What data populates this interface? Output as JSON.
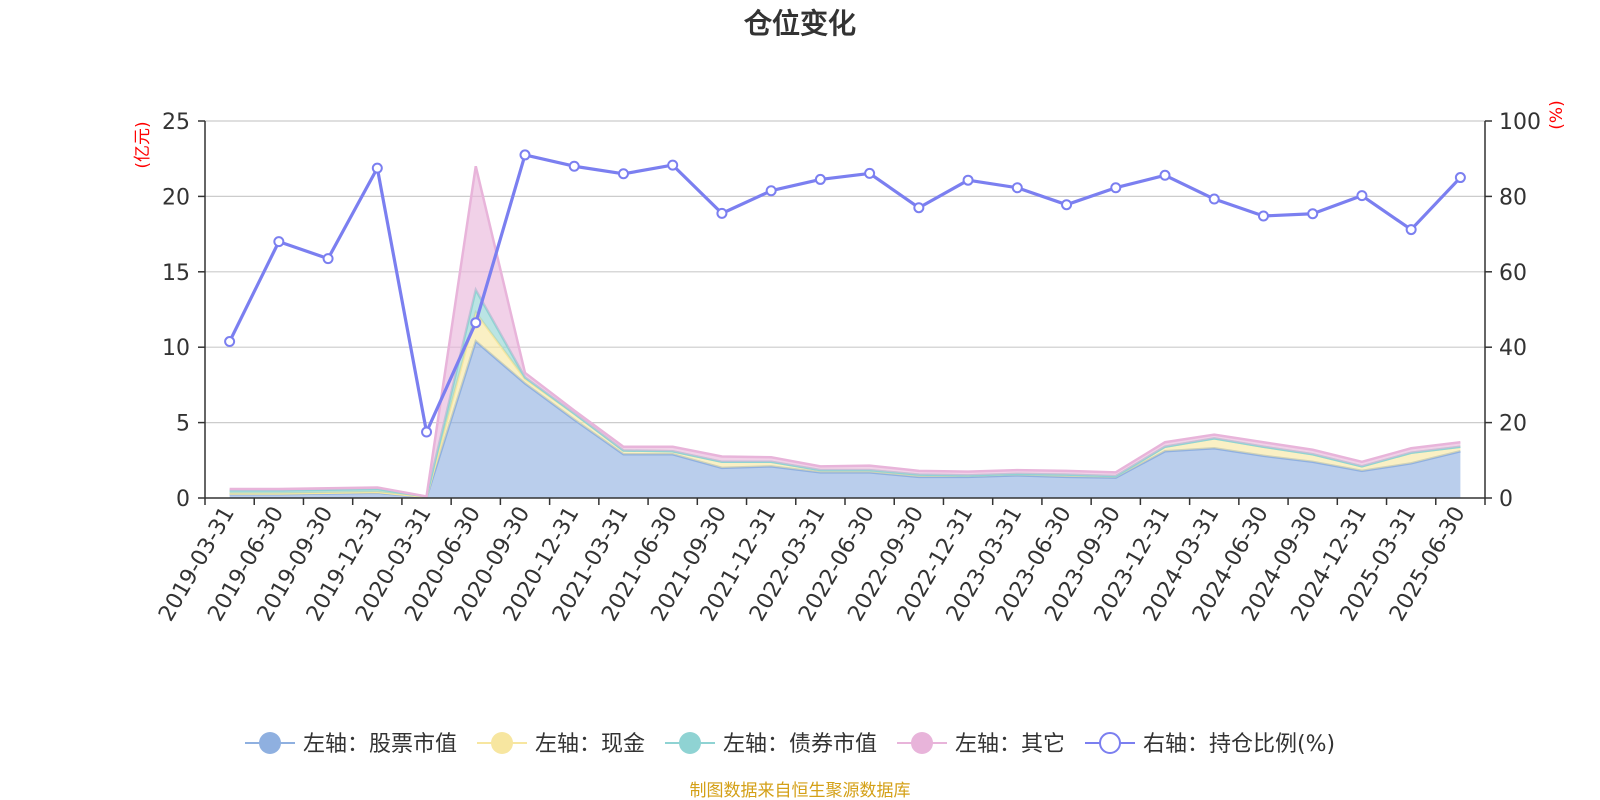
{
  "chart_data": {
    "type": "area",
    "title": "仓位变化",
    "left_axis_unit": "(亿元)",
    "right_axis_unit": "(%)",
    "ylim_left": [
      0,
      25
    ],
    "ylim_right": [
      0,
      100
    ],
    "yticks_left": [
      "0",
      "5",
      "10",
      "15",
      "20",
      "25"
    ],
    "yticks_right": [
      "0",
      "20",
      "40",
      "60",
      "80",
      "100"
    ],
    "grid": true,
    "legend_position": "bottom",
    "categories": [
      "2019-03-31",
      "2019-06-30",
      "2019-09-30",
      "2019-12-31",
      "2020-03-31",
      "2020-06-30",
      "2020-09-30",
      "2020-12-31",
      "2021-03-31",
      "2021-06-30",
      "2021-09-30",
      "2021-12-31",
      "2022-03-31",
      "2022-06-30",
      "2022-09-30",
      "2022-12-31",
      "2023-03-31",
      "2023-06-30",
      "2023-09-30",
      "2023-12-31",
      "2024-03-31",
      "2024-06-30",
      "2024-09-30",
      "2024-12-31",
      "2025-03-31",
      "2025-06-30"
    ],
    "series": [
      {
        "name": "左轴：股票市值",
        "axis": "left",
        "stacked": true,
        "color": "#8fb0e0",
        "values": [
          0.25,
          0.25,
          0.3,
          0.35,
          0.05,
          10.4,
          7.6,
          5.2,
          2.9,
          2.9,
          2.0,
          2.1,
          1.7,
          1.7,
          1.4,
          1.4,
          1.5,
          1.4,
          1.35,
          3.1,
          3.3,
          2.8,
          2.4,
          1.8,
          2.3,
          3.1
        ]
      },
      {
        "name": "左轴：现金",
        "axis": "left",
        "stacked": true,
        "color": "#f7e6a0",
        "values": [
          0.05,
          0.05,
          0.05,
          0.05,
          0.02,
          1.9,
          0.3,
          0.4,
          0.25,
          0.2,
          0.4,
          0.3,
          0.15,
          0.15,
          0.15,
          0.1,
          0.1,
          0.15,
          0.1,
          0.3,
          0.65,
          0.6,
          0.5,
          0.3,
          0.7,
          0.3
        ]
      },
      {
        "name": "左轴：债券市值",
        "axis": "left",
        "stacked": true,
        "color": "#8fd3d3",
        "values": [
          0.2,
          0.2,
          0.2,
          0.2,
          0.02,
          1.5,
          0.1,
          0,
          0,
          0,
          0,
          0,
          0,
          0,
          0,
          0,
          0,
          0,
          0,
          0,
          0,
          0,
          0,
          0,
          0,
          0
        ]
      },
      {
        "name": "左轴：其它",
        "axis": "left",
        "stacked": true,
        "color": "#e8b4da",
        "values": [
          0.1,
          0.1,
          0.1,
          0.1,
          0.01,
          8.2,
          0.3,
          0.2,
          0.25,
          0.3,
          0.35,
          0.3,
          0.25,
          0.3,
          0.25,
          0.25,
          0.25,
          0.25,
          0.25,
          0.3,
          0.25,
          0.3,
          0.3,
          0.3,
          0.3,
          0.3
        ]
      },
      {
        "name": "右轴：持仓比例(%)",
        "axis": "right",
        "type": "line",
        "color": "#7b7ff0",
        "values": [
          41.5,
          68,
          63.5,
          87.5,
          17.5,
          46.5,
          91,
          88,
          86,
          88.3,
          75.5,
          81.5,
          84.5,
          86.1,
          77,
          84.3,
          82.3,
          77.8,
          82.3,
          85.6,
          79.3,
          74.8,
          75.4,
          80.2,
          71.2,
          85
        ]
      }
    ]
  },
  "legend": [
    {
      "label": "左轴：股票市值",
      "icon": "filled-circle-icon",
      "color": "#8fb0e0"
    },
    {
      "label": "左轴：现金",
      "icon": "filled-circle-icon",
      "color": "#f7e6a0"
    },
    {
      "label": "左轴：债券市值",
      "icon": "filled-circle-icon",
      "color": "#8fd3d3"
    },
    {
      "label": "左轴：其它",
      "icon": "filled-circle-icon",
      "color": "#e8b4da"
    },
    {
      "label": "右轴：持仓比例(%)",
      "icon": "hollow-circle-icon",
      "color": "#7b7ff0"
    }
  ],
  "source_note": "制图数据来自恒生聚源数据库"
}
